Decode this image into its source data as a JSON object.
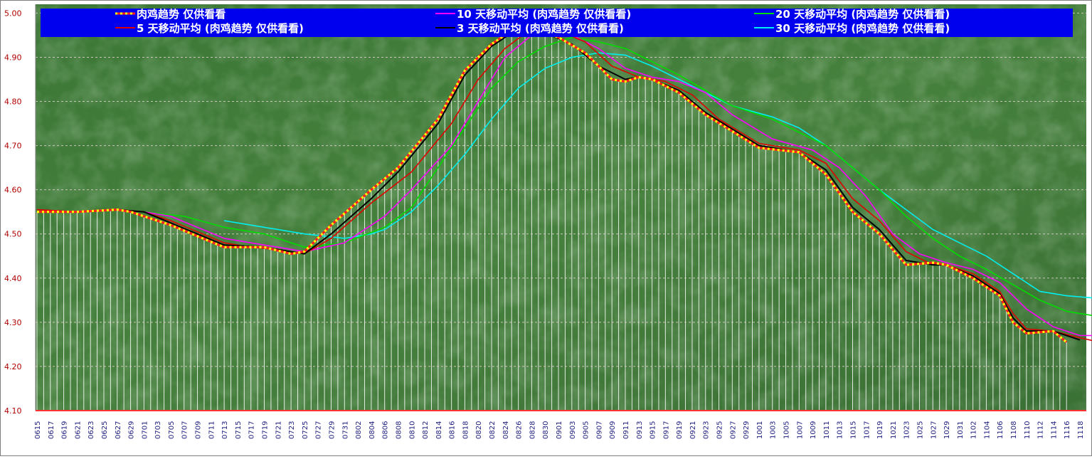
{
  "chart_data": {
    "type": "line",
    "title": "",
    "xlabel": "",
    "ylabel": "",
    "ylim": [
      4.1,
      5.02
    ],
    "yticks": [
      "4.10",
      "4.20",
      "4.30",
      "4.40",
      "4.50",
      "4.60",
      "4.70",
      "4.80",
      "4.90",
      "5.00"
    ],
    "grid": true,
    "legend_position": "top",
    "x_labels": [
      "0615",
      "0617",
      "0619",
      "0621",
      "0623",
      "0625",
      "0627",
      "0629",
      "0701",
      "0703",
      "0705",
      "0707",
      "0709",
      "0711",
      "0713",
      "0715",
      "0717",
      "0719",
      "0721",
      "0723",
      "0725",
      "0727",
      "0729",
      "0731",
      "0802",
      "0804",
      "0806",
      "0808",
      "0810",
      "0812",
      "0814",
      "0816",
      "0818",
      "0820",
      "0822",
      "0824",
      "0826",
      "0828",
      "0830",
      "0901",
      "0903",
      "0905",
      "0907",
      "0909",
      "0911",
      "0913",
      "0915",
      "0917",
      "0919",
      "0921",
      "0923",
      "0925",
      "0927",
      "0929",
      "1001",
      "1003",
      "1005",
      "1007",
      "1009",
      "1011",
      "1013",
      "1015",
      "1017",
      "1019",
      "1021",
      "1023",
      "1025",
      "1027",
      "1029",
      "1031",
      "1102",
      "1104",
      "1106",
      "1108",
      "1110",
      "1112",
      "1114",
      "1116",
      "1118"
    ],
    "series": [
      {
        "name": "肉鸡趋势 仅供看看",
        "color": "#ff2020",
        "marker_color": "#ffff00",
        "points": [
          [
            0,
            4.55
          ],
          [
            3,
            4.55
          ],
          [
            6,
            4.555
          ],
          [
            7,
            4.55
          ],
          [
            10,
            4.52
          ],
          [
            14,
            4.47
          ],
          [
            17,
            4.47
          ],
          [
            19,
            4.455
          ],
          [
            20,
            4.46
          ],
          [
            22,
            4.52
          ],
          [
            25,
            4.6
          ],
          [
            27,
            4.65
          ],
          [
            30,
            4.76
          ],
          [
            32,
            4.87
          ],
          [
            34,
            4.93
          ],
          [
            36,
            4.97
          ],
          [
            37,
            4.965
          ],
          [
            39,
            4.945
          ],
          [
            41,
            4.91
          ],
          [
            43,
            4.85
          ],
          [
            44,
            4.845
          ],
          [
            45,
            4.855
          ],
          [
            46,
            4.85
          ],
          [
            48,
            4.82
          ],
          [
            50,
            4.77
          ],
          [
            54,
            4.695
          ],
          [
            57,
            4.685
          ],
          [
            59,
            4.635
          ],
          [
            61,
            4.55
          ],
          [
            63,
            4.5
          ],
          [
            65,
            4.43
          ],
          [
            67,
            4.435
          ],
          [
            68,
            4.43
          ],
          [
            70,
            4.4
          ],
          [
            72,
            4.36
          ],
          [
            73,
            4.3
          ],
          [
            74,
            4.275
          ],
          [
            76,
            4.28
          ],
          [
            77,
            4.255
          ]
        ]
      },
      {
        "name": "5 天移动平均 (肉鸡趋势 仅供看看)",
        "color": "#e00000",
        "points": [
          [
            0,
            4.555
          ],
          [
            3,
            4.55
          ],
          [
            6,
            4.555
          ],
          [
            8,
            4.55
          ],
          [
            10,
            4.53
          ],
          [
            14,
            4.48
          ],
          [
            16,
            4.47
          ],
          [
            18,
            4.465
          ],
          [
            20,
            4.455
          ],
          [
            22,
            4.49
          ],
          [
            25,
            4.57
          ],
          [
            28,
            4.64
          ],
          [
            31,
            4.75
          ],
          [
            33,
            4.85
          ],
          [
            35,
            4.92
          ],
          [
            37,
            4.965
          ],
          [
            39,
            4.96
          ],
          [
            41,
            4.935
          ],
          [
            43,
            4.88
          ],
          [
            45,
            4.855
          ],
          [
            47,
            4.845
          ],
          [
            49,
            4.815
          ],
          [
            51,
            4.76
          ],
          [
            54,
            4.705
          ],
          [
            57,
            4.69
          ],
          [
            59,
            4.66
          ],
          [
            61,
            4.58
          ],
          [
            63,
            4.53
          ],
          [
            65,
            4.46
          ],
          [
            67,
            4.43
          ],
          [
            68,
            4.43
          ],
          [
            70,
            4.41
          ],
          [
            72,
            4.37
          ],
          [
            73,
            4.32
          ],
          [
            74,
            4.285
          ],
          [
            76,
            4.28
          ],
          [
            78,
            4.265
          ],
          [
            79,
            4.258
          ]
        ]
      },
      {
        "name": "10 天移动平均 (肉鸡趋势 仅供看看)",
        "color": "#ff00ff",
        "points": [
          [
            8,
            4.55
          ],
          [
            10,
            4.54
          ],
          [
            14,
            4.49
          ],
          [
            17,
            4.475
          ],
          [
            20,
            4.46
          ],
          [
            23,
            4.48
          ],
          [
            26,
            4.54
          ],
          [
            28,
            4.6
          ],
          [
            31,
            4.7
          ],
          [
            33,
            4.8
          ],
          [
            35,
            4.9
          ],
          [
            37,
            4.95
          ],
          [
            38,
            4.96
          ],
          [
            40,
            4.95
          ],
          [
            42,
            4.92
          ],
          [
            44,
            4.875
          ],
          [
            46,
            4.855
          ],
          [
            48,
            4.845
          ],
          [
            50,
            4.82
          ],
          [
            52,
            4.77
          ],
          [
            55,
            4.715
          ],
          [
            58,
            4.69
          ],
          [
            60,
            4.65
          ],
          [
            62,
            4.585
          ],
          [
            64,
            4.5
          ],
          [
            66,
            4.455
          ],
          [
            68,
            4.435
          ],
          [
            70,
            4.42
          ],
          [
            72,
            4.39
          ],
          [
            74,
            4.33
          ],
          [
            76,
            4.29
          ],
          [
            78,
            4.27
          ],
          [
            79,
            4.27
          ]
        ]
      },
      {
        "name": "3 天移动平均 (肉鸡趋势 仅供看看)",
        "color": "#000000",
        "points": [
          [
            0,
            4.55
          ],
          [
            3,
            4.55
          ],
          [
            6,
            4.555
          ],
          [
            8,
            4.55
          ],
          [
            10,
            4.525
          ],
          [
            14,
            4.475
          ],
          [
            17,
            4.47
          ],
          [
            19,
            4.46
          ],
          [
            20,
            4.455
          ],
          [
            22,
            4.5
          ],
          [
            25,
            4.58
          ],
          [
            27,
            4.64
          ],
          [
            30,
            4.75
          ],
          [
            32,
            4.86
          ],
          [
            34,
            4.925
          ],
          [
            36,
            4.965
          ],
          [
            38,
            4.955
          ],
          [
            40,
            4.93
          ],
          [
            42,
            4.88
          ],
          [
            44,
            4.85
          ],
          [
            45,
            4.855
          ],
          [
            46,
            4.85
          ],
          [
            48,
            4.825
          ],
          [
            50,
            4.775
          ],
          [
            54,
            4.7
          ],
          [
            57,
            4.685
          ],
          [
            59,
            4.645
          ],
          [
            61,
            4.56
          ],
          [
            63,
            4.51
          ],
          [
            65,
            4.44
          ],
          [
            67,
            4.43
          ],
          [
            68,
            4.43
          ],
          [
            70,
            4.405
          ],
          [
            72,
            4.365
          ],
          [
            73,
            4.31
          ],
          [
            74,
            4.28
          ],
          [
            76,
            4.28
          ],
          [
            78,
            4.26
          ]
        ]
      },
      {
        "name": "20 天移动平均 (肉鸡趋势 仅供看看)",
        "color": "#00dd00",
        "points": [
          [
            8,
            4.55
          ],
          [
            11,
            4.54
          ],
          [
            14,
            4.515
          ],
          [
            17,
            4.5
          ],
          [
            20,
            4.47
          ],
          [
            23,
            4.48
          ],
          [
            26,
            4.515
          ],
          [
            28,
            4.56
          ],
          [
            30,
            4.65
          ],
          [
            32,
            4.74
          ],
          [
            34,
            4.83
          ],
          [
            36,
            4.89
          ],
          [
            38,
            4.925
          ],
          [
            40,
            4.945
          ],
          [
            42,
            4.935
          ],
          [
            44,
            4.92
          ],
          [
            46,
            4.89
          ],
          [
            48,
            4.86
          ],
          [
            50,
            4.825
          ],
          [
            52,
            4.79
          ],
          [
            55,
            4.76
          ],
          [
            57,
            4.73
          ],
          [
            59,
            4.7
          ],
          [
            61,
            4.65
          ],
          [
            63,
            4.6
          ],
          [
            65,
            4.54
          ],
          [
            67,
            4.49
          ],
          [
            69,
            4.45
          ],
          [
            71,
            4.42
          ],
          [
            73,
            4.385
          ],
          [
            75,
            4.35
          ],
          [
            77,
            4.325
          ],
          [
            79,
            4.315
          ]
        ]
      },
      {
        "name": "30 天移动平均 (肉鸡趋势 仅供看看)",
        "color": "#00eeee",
        "points": [
          [
            14,
            4.53
          ],
          [
            17,
            4.515
          ],
          [
            20,
            4.5
          ],
          [
            23,
            4.49
          ],
          [
            25,
            4.5
          ],
          [
            26,
            4.51
          ],
          [
            28,
            4.55
          ],
          [
            30,
            4.61
          ],
          [
            32,
            4.68
          ],
          [
            34,
            4.76
          ],
          [
            36,
            4.83
          ],
          [
            38,
            4.875
          ],
          [
            40,
            4.9
          ],
          [
            42,
            4.91
          ],
          [
            44,
            4.905
          ],
          [
            46,
            4.88
          ],
          [
            48,
            4.85
          ],
          [
            50,
            4.82
          ],
          [
            52,
            4.79
          ],
          [
            55,
            4.765
          ],
          [
            57,
            4.74
          ],
          [
            59,
            4.7
          ],
          [
            61,
            4.65
          ],
          [
            63,
            4.6
          ],
          [
            65,
            4.555
          ],
          [
            67,
            4.51
          ],
          [
            69,
            4.48
          ],
          [
            71,
            4.45
          ],
          [
            73,
            4.41
          ],
          [
            75,
            4.37
          ],
          [
            77,
            4.36
          ],
          [
            79,
            4.355
          ]
        ]
      }
    ]
  },
  "colors": {
    "background_green": "#3f7a38",
    "legend_background": "#0000ee",
    "axis_label": "#b00000"
  }
}
